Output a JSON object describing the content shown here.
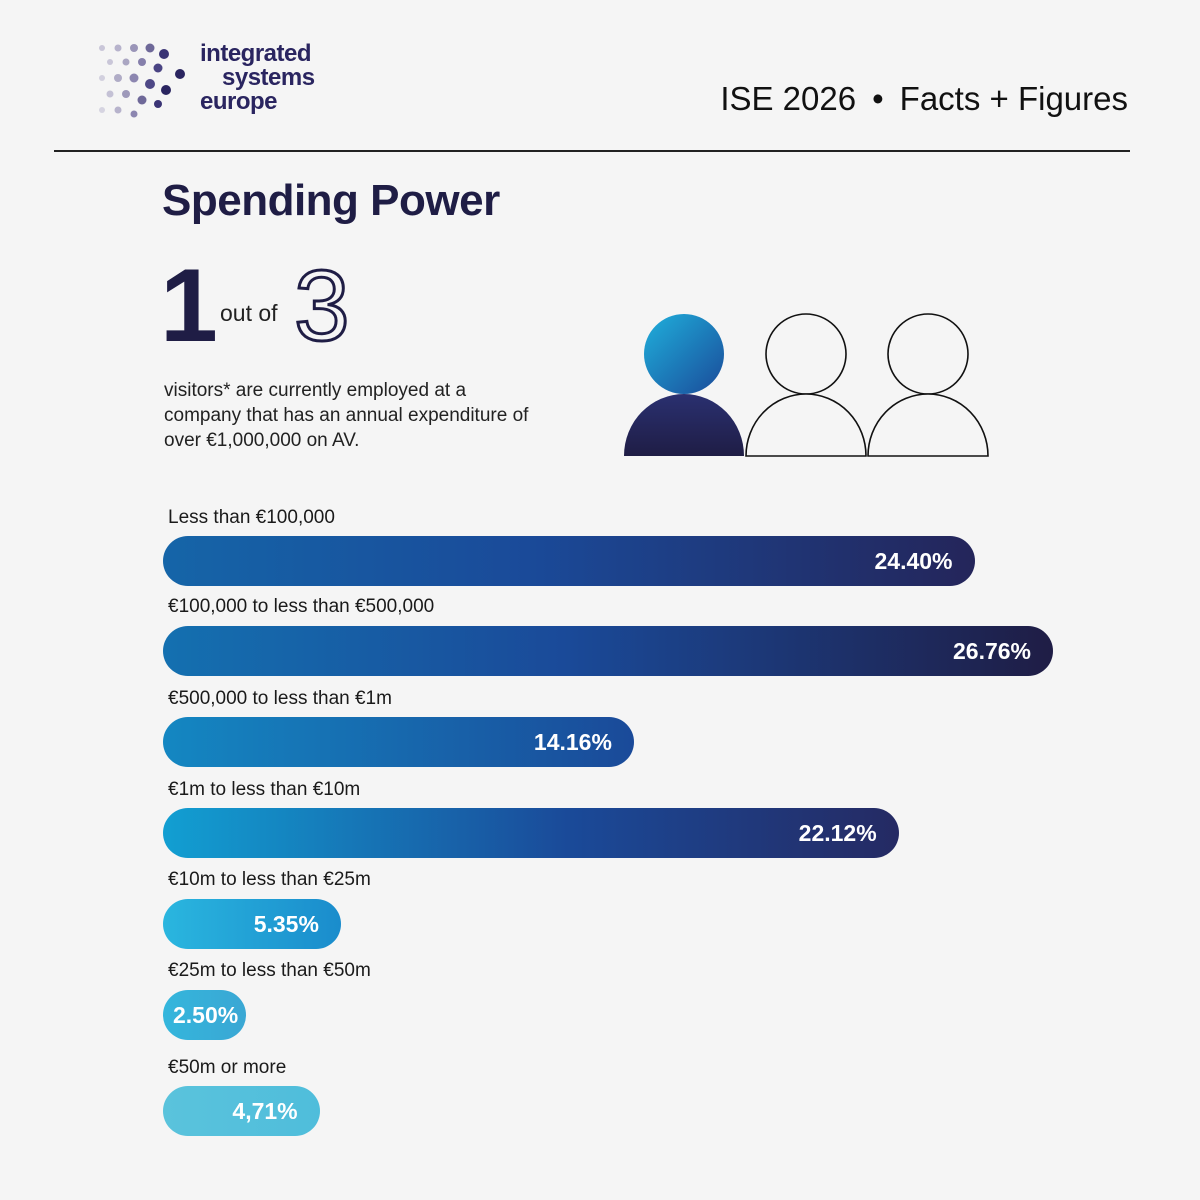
{
  "header": {
    "logo_line1": "integrated",
    "logo_line2": "systems",
    "logo_line3": "europe",
    "event": "ISE 2026",
    "separator": "•",
    "section": "Facts + Figures"
  },
  "title": "Spending Power",
  "stat": {
    "numerator": "1",
    "connector": "out of",
    "denominator": "3",
    "description": "visitors* are currently employed at a company that has an annual expenditure of over €1,000,000 on AV.",
    "highlighted_people": 1,
    "total_people": 3
  },
  "colors": {
    "navy": "#1f1d45",
    "blue": "#1a4a99",
    "cyan": "#16a3d6",
    "light_cyan": "#5ac3dc"
  },
  "chart_data": {
    "type": "bar",
    "orientation": "horizontal",
    "categories": [
      "Less than €100,000",
      "€100,000 to less than €500,000",
      "€500,000 to less than €1m",
      "€1m to less than €10m",
      "€10m to less than €25m",
      "€25m to less than €50m",
      "€50m or more"
    ],
    "values": [
      24.4,
      26.76,
      14.16,
      22.12,
      5.35,
      2.5,
      4.71
    ],
    "value_labels": [
      "24.40%",
      "26.76%",
      "14.16%",
      "22.12%",
      "5.35%",
      "2.50%",
      "4,71%"
    ],
    "unit": "%",
    "xlim": [
      0,
      26.76
    ]
  }
}
